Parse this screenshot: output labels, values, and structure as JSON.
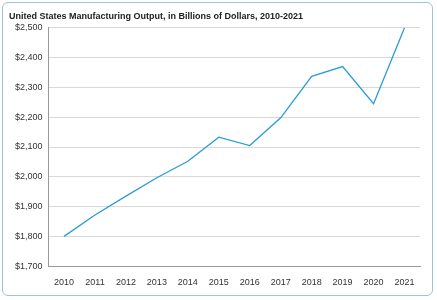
{
  "chart_data": {
    "type": "line",
    "title": "United States Manufacturing Output, in Billions of Dollars, 2010-2021",
    "categories": [
      "2010",
      "2011",
      "2012",
      "2013",
      "2014",
      "2015",
      "2016",
      "2017",
      "2018",
      "2019",
      "2020",
      "2021"
    ],
    "values": [
      1800,
      1872,
      1935,
      1997,
      2052,
      2133,
      2105,
      2198,
      2337,
      2370,
      2245,
      2500
    ],
    "color": "#2b9cd8",
    "ylim": [
      1700,
      2500
    ],
    "yticks": [
      {
        "value": 1700,
        "label": "$1,700"
      },
      {
        "value": 1800,
        "label": "$1,800"
      },
      {
        "value": 1900,
        "label": "$1,900"
      },
      {
        "value": 2000,
        "label": "$2,000"
      },
      {
        "value": 2100,
        "label": "$2,100"
      },
      {
        "value": 2200,
        "label": "$2,200"
      },
      {
        "value": 2300,
        "label": "$2,300"
      },
      {
        "value": 2400,
        "label": "$2,400"
      },
      {
        "value": 2500,
        "label": "$2,500"
      }
    ],
    "grid": true
  }
}
